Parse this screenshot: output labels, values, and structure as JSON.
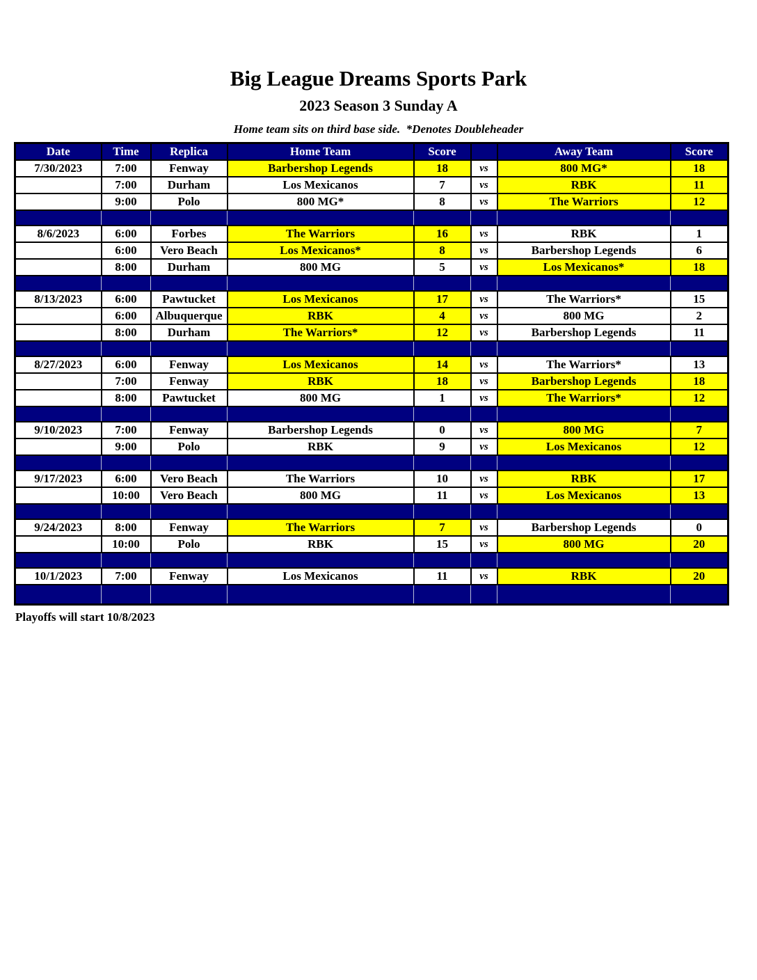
{
  "page": {
    "title": "Big League Dreams Sports Park",
    "subtitle": "2023 Season 3 Sunday A",
    "note": "Home team sits on third base side.  *Denotes Doubleheader",
    "footer": "Playoffs will start 10/8/2023"
  },
  "colors": {
    "navy": "#000080",
    "highlight": "#FFFF00",
    "header_text": "#FFFFFF",
    "body_text": "#000000"
  },
  "table": {
    "columns": [
      {
        "key": "date",
        "label": "Date"
      },
      {
        "key": "time",
        "label": "Time"
      },
      {
        "key": "replica",
        "label": "Replica"
      },
      {
        "key": "home",
        "label": "Home Team"
      },
      {
        "key": "home-score",
        "label": "Score"
      },
      {
        "key": "vs",
        "label": ""
      },
      {
        "key": "away",
        "label": "Away Team"
      },
      {
        "key": "away-score",
        "label": "Score"
      }
    ],
    "vs_label": "vs",
    "groups": [
      {
        "date": "7/30/2023",
        "games": [
          {
            "time": "7:00",
            "replica": "Fenway",
            "home": "Barbershop Legends",
            "home_score": "18",
            "away": "800 MG*",
            "away_score": "18",
            "home_win": true,
            "away_win": true
          },
          {
            "time": "7:00",
            "replica": "Durham",
            "home": "Los Mexicanos",
            "home_score": "7",
            "away": "RBK",
            "away_score": "11",
            "home_win": false,
            "away_win": true
          },
          {
            "time": "9:00",
            "replica": "Polo",
            "home": "800 MG*",
            "home_score": "8",
            "away": "The Warriors",
            "away_score": "12",
            "home_win": false,
            "away_win": true
          }
        ]
      },
      {
        "date": "8/6/2023",
        "games": [
          {
            "time": "6:00",
            "replica": "Forbes",
            "home": "The Warriors",
            "home_score": "16",
            "away": "RBK",
            "away_score": "1",
            "home_win": true,
            "away_win": false
          },
          {
            "time": "6:00",
            "replica": "Vero Beach",
            "home": "Los Mexicanos*",
            "home_score": "8",
            "away": "Barbershop Legends",
            "away_score": "6",
            "home_win": true,
            "away_win": false
          },
          {
            "time": "8:00",
            "replica": "Durham",
            "home": "800 MG",
            "home_score": "5",
            "away": "Los Mexicanos*",
            "away_score": "18",
            "home_win": false,
            "away_win": true
          }
        ]
      },
      {
        "date": "8/13/2023",
        "games": [
          {
            "time": "6:00",
            "replica": "Pawtucket",
            "home": "Los Mexicanos",
            "home_score": "17",
            "away": "The Warriors*",
            "away_score": "15",
            "home_win": true,
            "away_win": false
          },
          {
            "time": "6:00",
            "replica": "Albuquerque",
            "home": "RBK",
            "home_score": "4",
            "away": "800 MG",
            "away_score": "2",
            "home_win": true,
            "away_win": false
          },
          {
            "time": "8:00",
            "replica": "Durham",
            "home": "The Warriors*",
            "home_score": "12",
            "away": "Barbershop Legends",
            "away_score": "11",
            "home_win": true,
            "away_win": false
          }
        ]
      },
      {
        "date": "8/27/2023",
        "games": [
          {
            "time": "6:00",
            "replica": "Fenway",
            "home": "Los Mexicanos",
            "home_score": "14",
            "away": "The Warriors*",
            "away_score": "13",
            "home_win": true,
            "away_win": false
          },
          {
            "time": "7:00",
            "replica": "Fenway",
            "home": "RBK",
            "home_score": "18",
            "away": "Barbershop Legends",
            "away_score": "18",
            "home_win": true,
            "away_win": true
          },
          {
            "time": "8:00",
            "replica": "Pawtucket",
            "home": "800 MG",
            "home_score": "1",
            "away": "The Warriors*",
            "away_score": "12",
            "home_win": false,
            "away_win": true
          }
        ]
      },
      {
        "date": "9/10/2023",
        "games": [
          {
            "time": "7:00",
            "replica": "Fenway",
            "home": "Barbershop Legends",
            "home_score": "0",
            "away": "800 MG",
            "away_score": "7",
            "home_win": false,
            "away_win": true
          },
          {
            "time": "9:00",
            "replica": "Polo",
            "home": "RBK",
            "home_score": "9",
            "away": "Los Mexicanos",
            "away_score": "12",
            "home_win": false,
            "away_win": true
          }
        ]
      },
      {
        "date": "9/17/2023",
        "games": [
          {
            "time": "6:00",
            "replica": "Vero Beach",
            "home": "The Warriors",
            "home_score": "10",
            "away": "RBK",
            "away_score": "17",
            "home_win": false,
            "away_win": true
          },
          {
            "time": "10:00",
            "replica": "Vero Beach",
            "home": "800 MG",
            "home_score": "11",
            "away": "Los Mexicanos",
            "away_score": "13",
            "home_win": false,
            "away_win": true
          }
        ]
      },
      {
        "date": "9/24/2023",
        "games": [
          {
            "time": "8:00",
            "replica": "Fenway",
            "home": "The Warriors",
            "home_score": "7",
            "away": "Barbershop Legends",
            "away_score": "0",
            "home_win": true,
            "away_win": false
          },
          {
            "time": "10:00",
            "replica": "Polo",
            "home": "RBK",
            "home_score": "15",
            "away": "800 MG",
            "away_score": "20",
            "home_win": false,
            "away_win": true
          }
        ]
      },
      {
        "date": "10/1/2023",
        "games": [
          {
            "time": "7:00",
            "replica": "Fenway",
            "home": "Los Mexicanos",
            "home_score": "11",
            "away": "RBK",
            "away_score": "20",
            "home_win": false,
            "away_win": true
          }
        ]
      }
    ]
  }
}
